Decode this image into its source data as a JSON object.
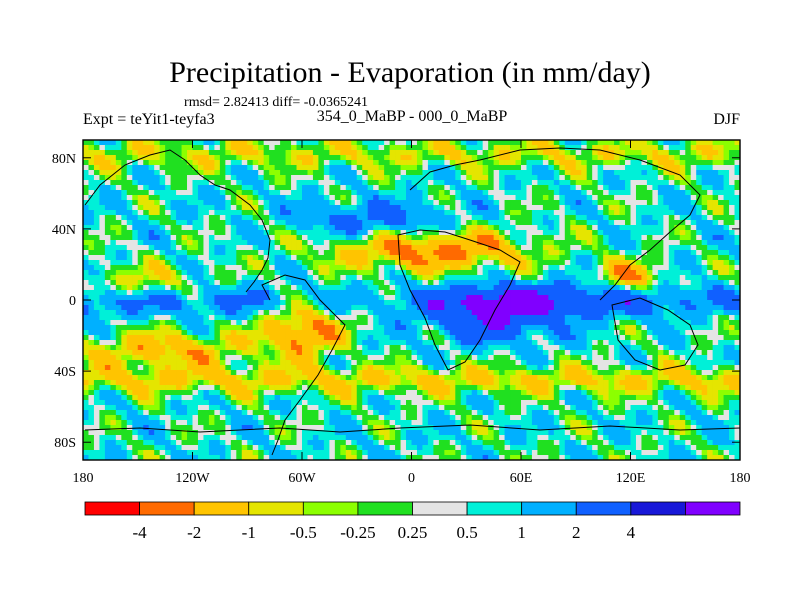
{
  "chart_data": {
    "type": "heatmap",
    "title": "Precipitation - Evaporation (in mm/day)",
    "stats_line": "rmsd= 2.82413 diff= -0.0365241",
    "subtitle": "354_0_MaBP - 000_0_MaBP",
    "left_label": "Expt = teYit1-teyfa3",
    "right_label": "DJF",
    "x_ticks": [
      "180",
      "120W",
      "60W",
      "0",
      "60E",
      "120E",
      "180"
    ],
    "y_ticks": [
      "80N",
      "40N",
      "0",
      "40S",
      "80S"
    ],
    "x_range": [
      -180,
      180
    ],
    "y_range": [
      -90,
      90
    ],
    "colorbar": {
      "labels": [
        "-4",
        "-2",
        "-1",
        "-0.5",
        "-0.25",
        "0.25",
        "0.5",
        "1",
        "2",
        "4"
      ],
      "colors": [
        "#ff0000",
        "#ff6a00",
        "#ffc400",
        "#e5e500",
        "#8cff00",
        "#20e020",
        "#e4e4e4",
        "#00f0d8",
        "#00b0ff",
        "#1060ff",
        "#1818d8",
        "#8000ff"
      ]
    }
  }
}
